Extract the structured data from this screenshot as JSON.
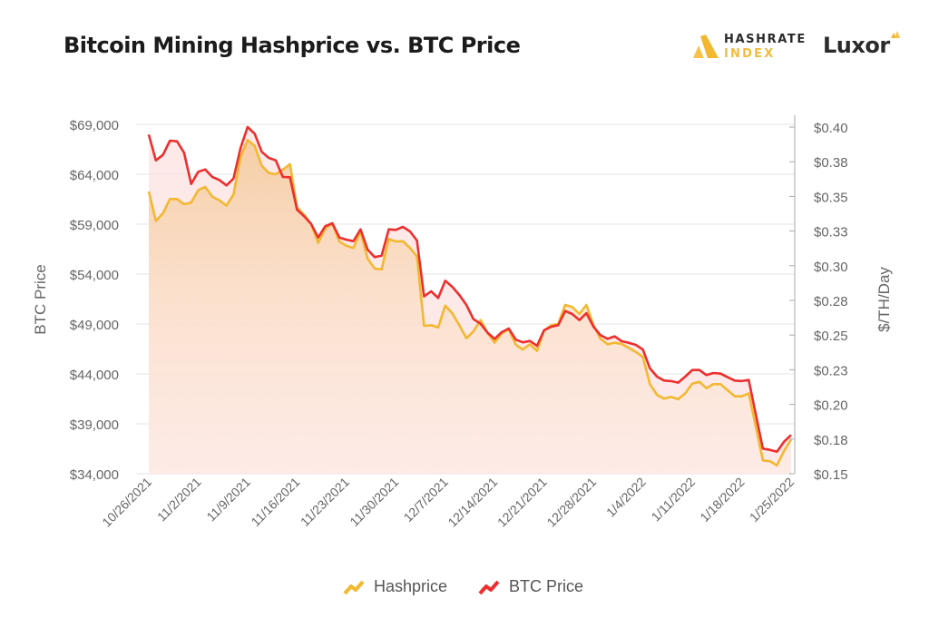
{
  "header": {
    "title": "Bitcoin Mining Hashprice vs. BTC Price",
    "brand1_line1": "HASHRATE",
    "brand1_line2": "INDEX",
    "brand2": "Luxor"
  },
  "colors": {
    "hashprice": "#f2b830",
    "btc": "#ee2e2e",
    "hashprice_fill": "#f5c99a",
    "btc_fill": "#fde2e2",
    "grid": "#e4e4e4",
    "text": "#666666"
  },
  "chart_data": {
    "type": "line",
    "title": "Bitcoin Mining Hashprice vs. BTC Price",
    "ylabel": "BTC Price",
    "y2label": "$/TH/Day",
    "ylim": [
      34000,
      69000
    ],
    "y2lim": [
      0.15,
      0.4
    ],
    "grid": true,
    "legend": "bottom",
    "yticks": [
      "$69,000",
      "$64,000",
      "$59,000",
      "$54,000",
      "$49,000",
      "$44,000",
      "$39,000",
      "$34,000"
    ],
    "y2ticks": [
      "$0.40",
      "$0.38",
      "$0.35",
      "$0.33",
      "$0.30",
      "$0.28",
      "$0.25",
      "$0.23",
      "$0.20",
      "$0.18",
      "$0.15"
    ],
    "xticks": [
      "10/26/2021",
      "11/2/2021",
      "11/9/2021",
      "11/16/2021",
      "11/23/2021",
      "11/30/2021",
      "12/7/2021",
      "12/14/2021",
      "12/21/2021",
      "12/28/2021",
      "1/4/2022",
      "1/11/2022",
      "1/18/2022",
      "1/25/2022"
    ],
    "x": [
      "2021-10-26",
      "2021-10-27",
      "2021-10-28",
      "2021-10-29",
      "2021-10-30",
      "2021-10-31",
      "2021-11-01",
      "2021-11-02",
      "2021-11-03",
      "2021-11-04",
      "2021-11-05",
      "2021-11-06",
      "2021-11-07",
      "2021-11-08",
      "2021-11-09",
      "2021-11-10",
      "2021-11-11",
      "2021-11-12",
      "2021-11-13",
      "2021-11-14",
      "2021-11-15",
      "2021-11-16",
      "2021-11-17",
      "2021-11-18",
      "2021-11-19",
      "2021-11-20",
      "2021-11-21",
      "2021-11-22",
      "2021-11-23",
      "2021-11-24",
      "2021-11-25",
      "2021-11-26",
      "2021-11-27",
      "2021-11-28",
      "2021-11-29",
      "2021-11-30",
      "2021-12-01",
      "2021-12-02",
      "2021-12-03",
      "2021-12-04",
      "2021-12-05",
      "2021-12-06",
      "2021-12-07",
      "2021-12-08",
      "2021-12-09",
      "2021-12-10",
      "2021-12-11",
      "2021-12-12",
      "2021-12-13",
      "2021-12-14",
      "2021-12-15",
      "2021-12-16",
      "2021-12-17",
      "2021-12-18",
      "2021-12-19",
      "2021-12-20",
      "2021-12-21",
      "2021-12-22",
      "2021-12-23",
      "2021-12-24",
      "2021-12-25",
      "2021-12-26",
      "2021-12-27",
      "2021-12-28",
      "2021-12-29",
      "2021-12-30",
      "2021-12-31",
      "2022-01-01",
      "2022-01-02",
      "2022-01-03",
      "2022-01-04",
      "2022-01-05",
      "2022-01-06",
      "2022-01-07",
      "2022-01-08",
      "2022-01-09",
      "2022-01-10",
      "2022-01-11",
      "2022-01-12",
      "2022-01-13",
      "2022-01-14",
      "2022-01-15",
      "2022-01-16",
      "2022-01-17",
      "2022-01-18",
      "2022-01-19",
      "2022-01-20",
      "2022-01-21",
      "2022-01-22",
      "2022-01-23",
      "2022-01-24",
      "2022-01-25"
    ],
    "series": [
      {
        "name": "Hashprice",
        "axis": "right",
        "values": [
          0.3535,
          0.3324,
          0.3378,
          0.3481,
          0.3481,
          0.3444,
          0.3455,
          0.3546,
          0.3568,
          0.3498,
          0.3472,
          0.3433,
          0.3514,
          0.3782,
          0.3906,
          0.3865,
          0.3721,
          0.3668,
          0.366,
          0.3694,
          0.3732,
          0.3422,
          0.3367,
          0.3302,
          0.3164,
          0.3269,
          0.3306,
          0.3175,
          0.3143,
          0.3128,
          0.3247,
          0.3051,
          0.2979,
          0.2974,
          0.3193,
          0.3175,
          0.3177,
          0.3128,
          0.3066,
          0.2567,
          0.2571,
          0.2555,
          0.2713,
          0.2658,
          0.2571,
          0.2477,
          0.2527,
          0.2608,
          0.2516,
          0.2445,
          0.2512,
          0.2542,
          0.2429,
          0.2396,
          0.2434,
          0.2386,
          0.2532,
          0.2571,
          0.2582,
          0.2717,
          0.2702,
          0.2652,
          0.2717,
          0.2571,
          0.2473,
          0.2434,
          0.2445,
          0.2436,
          0.2407,
          0.2379,
          0.2342,
          0.2146,
          0.2069,
          0.2041,
          0.2054,
          0.2037,
          0.208,
          0.215,
          0.2163,
          0.2117,
          0.2146,
          0.2146,
          0.2102,
          0.2058,
          0.2058,
          0.208,
          0.184,
          0.1596,
          0.159,
          0.1561,
          0.1665,
          0.1747
        ]
      },
      {
        "name": "BTC Price",
        "axis": "left",
        "values": [
          67970,
          65390,
          65940,
          67360,
          67300,
          66150,
          63030,
          64250,
          64480,
          63730,
          63430,
          62880,
          63570,
          66610,
          68730,
          68060,
          66250,
          65640,
          65390,
          63730,
          63700,
          60450,
          59790,
          59030,
          57660,
          58790,
          59090,
          57660,
          57450,
          57300,
          58480,
          56450,
          55700,
          55850,
          58480,
          58430,
          58730,
          58270,
          57360,
          51760,
          52270,
          51610,
          53340,
          52730,
          51910,
          50910,
          49480,
          49030,
          48120,
          47510,
          48180,
          48550,
          47430,
          47160,
          47300,
          46820,
          48370,
          48730,
          48880,
          50300,
          50000,
          49390,
          50090,
          48730,
          47880,
          47510,
          47760,
          47270,
          47120,
          46910,
          46450,
          44550,
          43730,
          43340,
          43280,
          43130,
          43730,
          44390,
          44390,
          43880,
          44090,
          44030,
          43670,
          43340,
          43280,
          43400,
          39940,
          36520,
          36390,
          36210,
          37210,
          37880
        ]
      }
    ]
  },
  "legend": {
    "hashprice": "Hashprice",
    "btc": "BTC Price"
  }
}
